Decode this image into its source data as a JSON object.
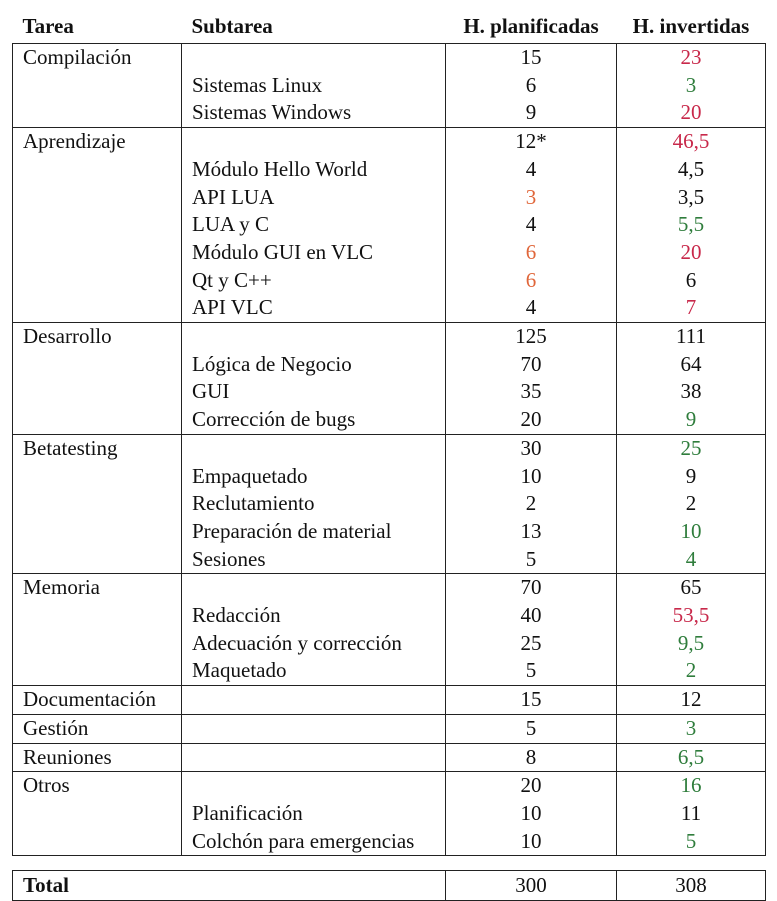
{
  "headers": {
    "task": "Tarea",
    "subtask": "Subtarea",
    "planned": "H. planificadas",
    "spent": "H. invertidas"
  },
  "groups": [
    {
      "task": "Compilación",
      "planned": "15",
      "spent": "23",
      "spent_color": "red",
      "items": [
        {
          "sub": "Sistemas Linux",
          "planned": "6",
          "spent": "3",
          "spent_color": "green"
        },
        {
          "sub": "Sistemas Windows",
          "planned": "9",
          "spent": "20",
          "spent_color": "red"
        }
      ]
    },
    {
      "task": "Aprendizaje",
      "planned": "12*",
      "spent": "46,5",
      "spent_color": "red",
      "items": [
        {
          "sub": "Módulo Hello World",
          "planned": "4",
          "spent": "4,5"
        },
        {
          "sub": "API LUA",
          "planned": "3",
          "planned_color": "orange",
          "spent": "3,5"
        },
        {
          "sub": "LUA y C",
          "planned": "4",
          "spent": "5,5",
          "spent_color": "green"
        },
        {
          "sub": "Módulo GUI en VLC",
          "planned": "6",
          "planned_color": "orange",
          "spent": "20",
          "spent_color": "red"
        },
        {
          "sub": "Qt y C++",
          "planned": "6",
          "planned_color": "orange",
          "spent": "6"
        },
        {
          "sub": "API VLC",
          "planned": "4",
          "spent": "7",
          "spent_color": "red"
        }
      ]
    },
    {
      "task": "Desarrollo",
      "planned": "125",
      "spent": "111",
      "items": [
        {
          "sub": "Lógica de Negocio",
          "planned": "70",
          "spent": "64"
        },
        {
          "sub": "GUI",
          "planned": "35",
          "spent": "38"
        },
        {
          "sub": "Corrección de bugs",
          "planned": "20",
          "spent": "9",
          "spent_color": "green"
        }
      ]
    },
    {
      "task": "Betatesting",
      "planned": "30",
      "spent": "25",
      "spent_color": "green",
      "items": [
        {
          "sub": "Empaquetado",
          "planned": "10",
          "spent": "9"
        },
        {
          "sub": "Reclutamiento",
          "planned": "2",
          "spent": "2"
        },
        {
          "sub": "Preparación de material",
          "planned": "13",
          "spent": "10",
          "spent_color": "green"
        },
        {
          "sub": "Sesiones",
          "planned": "5",
          "spent": "4",
          "spent_color": "green"
        }
      ]
    },
    {
      "task": "Memoria",
      "planned": "70",
      "spent": "65",
      "items": [
        {
          "sub": "Redacción",
          "planned": "40",
          "spent": "53,5",
          "spent_color": "red"
        },
        {
          "sub": "Adecuación y corrección",
          "planned": "25",
          "spent": "9,5",
          "spent_color": "green"
        },
        {
          "sub": "Maquetado",
          "planned": "5",
          "spent": "2",
          "spent_color": "green"
        }
      ]
    },
    {
      "task": "Documentación",
      "planned": "15",
      "spent": "12",
      "items": []
    },
    {
      "task": "Gestión",
      "planned": "5",
      "spent": "3",
      "spent_color": "green",
      "items": []
    },
    {
      "task": "Reuniones",
      "planned": "8",
      "spent": "6,5",
      "spent_color": "green",
      "items": []
    },
    {
      "task": "Otros",
      "planned": "20",
      "spent": "16",
      "spent_color": "green",
      "items": [
        {
          "sub": "Planificación",
          "planned": "10",
          "spent": "11"
        },
        {
          "sub": "Colchón para emergencias",
          "planned": "10",
          "spent": "5",
          "spent_color": "green"
        }
      ]
    }
  ],
  "total": {
    "label": "Total",
    "planned": "300",
    "spent": "308"
  },
  "colors": {
    "red": "#c8284a",
    "green": "#2f7d3c",
    "orange": "#e0663a"
  }
}
